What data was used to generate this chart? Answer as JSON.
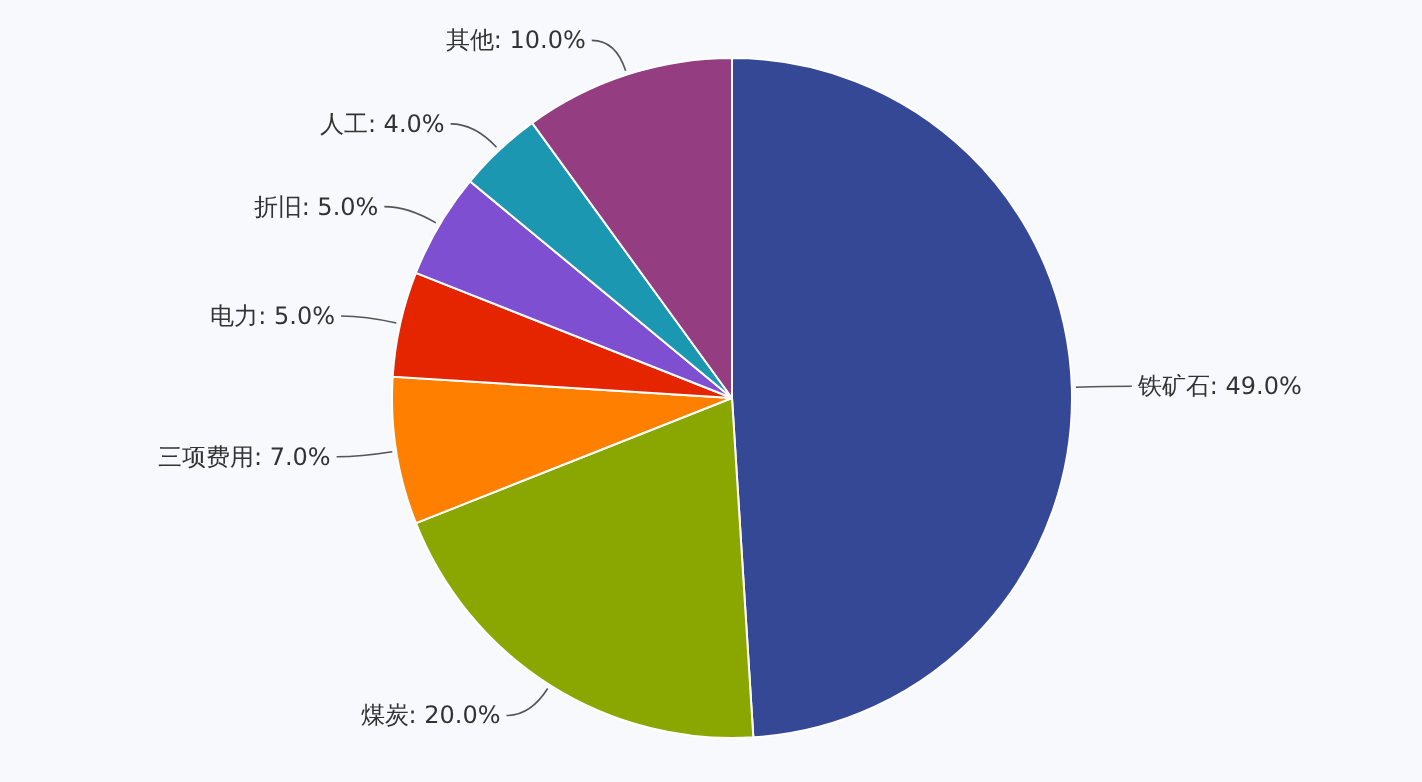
{
  "chart_data": {
    "type": "pie",
    "categories": [
      "铁矿石",
      "煤炭",
      "三项费用",
      "电力",
      "折旧",
      "人工",
      "其他"
    ],
    "values": [
      49,
      20,
      7,
      5,
      5,
      4,
      10
    ],
    "value_labels": [
      "49.0%",
      "20.0%",
      "7.0%",
      "5.0%",
      "5.0%",
      "4.0%",
      "10.0%"
    ],
    "colors": [
      "#354896",
      "#8aa600",
      "#ff7f00",
      "#e52400",
      "#7f4fd1",
      "#1b97b2",
      "#943d80"
    ]
  }
}
